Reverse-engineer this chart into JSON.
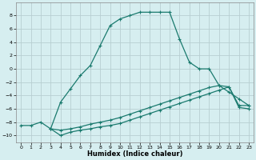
{
  "title": "",
  "xlabel": "Humidex (Indice chaleur)",
  "bg_color": "#d6eef0",
  "grid_color": "#c8dde0",
  "line_color": "#1a7a6e",
  "xlim": [
    -0.5,
    23.5
  ],
  "ylim": [
    -11,
    10
  ],
  "xticks": [
    0,
    1,
    2,
    3,
    4,
    5,
    6,
    7,
    8,
    9,
    10,
    11,
    12,
    13,
    14,
    15,
    16,
    17,
    18,
    19,
    20,
    21,
    22,
    23
  ],
  "yticks": [
    -10,
    -8,
    -6,
    -4,
    -2,
    0,
    2,
    4,
    6,
    8
  ],
  "line1_x": [
    0,
    1,
    2,
    3,
    4,
    5,
    6,
    7,
    8,
    9,
    10,
    11,
    12,
    13,
    14,
    15,
    16,
    17,
    18,
    19,
    20,
    21,
    22,
    23
  ],
  "line1_y": [
    -8.5,
    -8.5,
    -8.0,
    -9.0,
    -5.0,
    -3.0,
    -1.0,
    0.5,
    3.5,
    6.5,
    7.5,
    8.0,
    8.5,
    8.5,
    8.5,
    8.5,
    4.5,
    1.0,
    0.0,
    0.0,
    -2.5,
    -3.5,
    -4.5,
    -5.5
  ],
  "line2_x": [
    3,
    4,
    5,
    6,
    7,
    8,
    9,
    10,
    11,
    12,
    13,
    14,
    15,
    16,
    17,
    18,
    19,
    20,
    21,
    22,
    23
  ],
  "line2_y": [
    -9.0,
    -9.2,
    -9.0,
    -8.7,
    -8.3,
    -8.0,
    -7.7,
    -7.3,
    -6.8,
    -6.3,
    -5.8,
    -5.3,
    -4.8,
    -4.3,
    -3.8,
    -3.3,
    -2.8,
    -2.5,
    -2.7,
    -5.5,
    -5.5
  ],
  "line3_x": [
    3,
    4,
    5,
    6,
    7,
    8,
    9,
    10,
    11,
    12,
    13,
    14,
    15,
    16,
    17,
    18,
    19,
    20,
    21,
    22,
    23
  ],
  "line3_y": [
    -9.0,
    -10.0,
    -9.5,
    -9.2,
    -9.0,
    -8.7,
    -8.5,
    -8.2,
    -7.7,
    -7.2,
    -6.7,
    -6.2,
    -5.7,
    -5.2,
    -4.7,
    -4.2,
    -3.7,
    -3.2,
    -2.7,
    -5.8,
    -6.0
  ]
}
